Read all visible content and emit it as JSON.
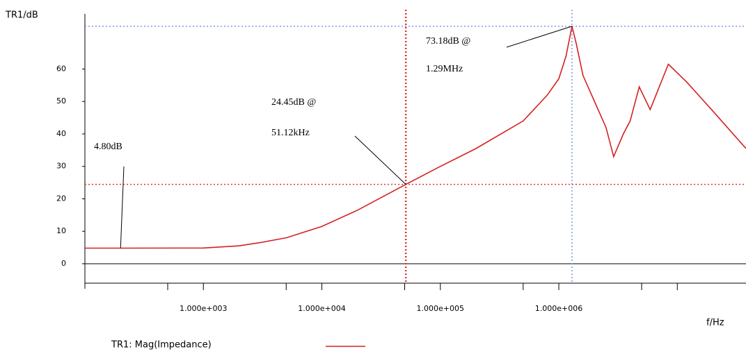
{
  "chart_data": {
    "type": "line",
    "y_axis_label": "TR1/dB",
    "x_axis_label": "f/Hz",
    "log_x": true,
    "xlim": [
      100,
      38000000
    ],
    "ylim": [
      -6,
      77
    ],
    "xticks": [
      {
        "value": 1000,
        "label": "1.000e+003"
      },
      {
        "value": 10000,
        "label": "1.000e+004"
      },
      {
        "value": 100000,
        "label": "1.000e+005"
      },
      {
        "value": 1000000,
        "label": "1.000e+006"
      }
    ],
    "xminorticks": [
      500,
      5000,
      50000,
      500000,
      5000000,
      10000000
    ],
    "yticks": [
      0,
      10,
      20,
      30,
      40,
      50,
      60
    ],
    "series": [
      {
        "name": "TR1: Mag(Impedance)",
        "color": "#d42020",
        "x": [
          100,
          200,
          1000,
          2000,
          3000,
          5000,
          10000,
          20000,
          51120,
          100000,
          200000,
          500000,
          800000,
          1000000,
          1150000,
          1290000,
          1400000,
          1600000,
          2000000,
          2500000,
          2900000,
          3500000,
          4000000,
          4770000,
          5900000,
          8400000,
          12000000,
          20000000,
          38000000
        ],
        "values": [
          4.8,
          4.8,
          4.85,
          5.5,
          6.5,
          8.0,
          11.5,
          16.5,
          24.45,
          30,
          35.5,
          44,
          52,
          57,
          64,
          73.18,
          68,
          58,
          50,
          42,
          33,
          40,
          44,
          54.5,
          47.5,
          61.5,
          56,
          47,
          35.5
        ]
      }
    ],
    "markers": [
      {
        "x": 200,
        "y": 4.8,
        "labels": [
          "4.80dB"
        ],
        "cursor": false
      },
      {
        "x": 51120,
        "y": 24.45,
        "labels": [
          "24.45dB @",
          "51.12kHz"
        ],
        "cursor": true,
        "color": "#e03030"
      },
      {
        "x": 1290000,
        "y": 73.18,
        "labels": [
          "73.18dB @",
          "1.29MHz"
        ],
        "cursor": true,
        "color": "#7a96e6"
      }
    ]
  }
}
